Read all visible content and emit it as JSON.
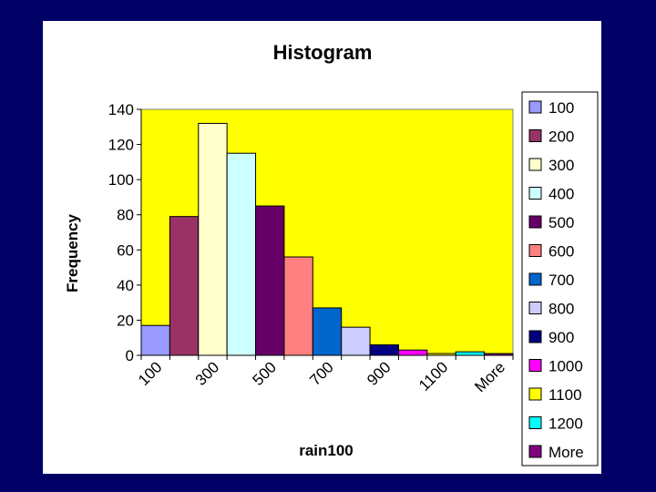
{
  "chart_data": {
    "type": "bar",
    "title": "Histogram",
    "xlabel": "rain100",
    "ylabel": "Frequency",
    "ylim": [
      0,
      140
    ],
    "yticks": [
      0,
      20,
      40,
      60,
      80,
      100,
      120,
      140
    ],
    "grid": false,
    "legend_position": "right",
    "categories": [
      "100",
      "200",
      "300",
      "400",
      "500",
      "600",
      "700",
      "800",
      "900",
      "1000",
      "1100",
      "1200",
      "More"
    ],
    "x_tick_labels": [
      "100",
      "300",
      "500",
      "700",
      "900",
      "1100",
      "More"
    ],
    "values": [
      17,
      79,
      132,
      115,
      85,
      56,
      27,
      16,
      6,
      3,
      1,
      2,
      1
    ],
    "colors": [
      "#9999ff",
      "#993366",
      "#ffffcc",
      "#ccffff",
      "#660066",
      "#ff8080",
      "#0066cc",
      "#ccccff",
      "#000080",
      "#ff00ff",
      "#ffff00",
      "#00ffff",
      "#800080"
    ],
    "plot_background": "#ffff00"
  }
}
